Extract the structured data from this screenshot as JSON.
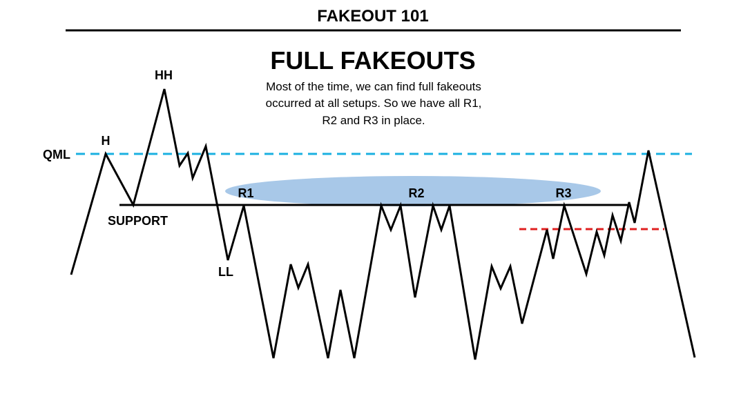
{
  "header": {
    "title": "FAKEOUT 101",
    "subtitle": "FULL FAKEOUTS",
    "description": [
      "Most of the time, we can find full fakeouts",
      "occurred at all setups. So we have all R1,",
      "R2 and R3 in place."
    ]
  },
  "labels": {
    "qml": "QML",
    "h": "H",
    "hh": "HH",
    "support": "SUPPORT",
    "ll": "LL",
    "r1": "R1",
    "r2": "R2",
    "r3": "R3"
  },
  "colors": {
    "qml_line": "#1ab0e0",
    "red_line": "#e02020",
    "highlight_ellipse": "#a8c8e8",
    "price_line": "#000000",
    "support_line": "#000000"
  }
}
